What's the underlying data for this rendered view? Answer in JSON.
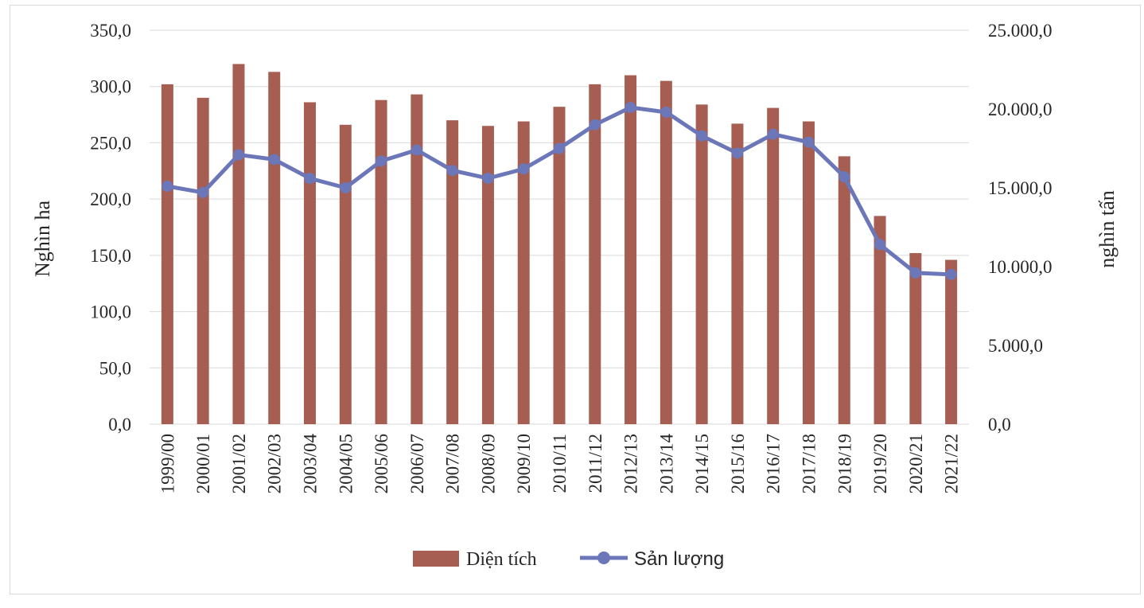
{
  "chart_data": {
    "type": "bar",
    "categories": [
      "1999/00",
      "2000/01",
      "2001/02",
      "2002/03",
      "2003/04",
      "2004/05",
      "2005/06",
      "2006/07",
      "2007/08",
      "2008/09",
      "2009/10",
      "2010/11",
      "2011/12",
      "2012/13",
      "2013/14",
      "2014/15",
      "2015/16",
      "2016/17",
      "2017/18",
      "2018/19",
      "2019/20",
      "2020/21",
      "2021/22"
    ],
    "series": [
      {
        "name": "Diện tích",
        "type": "bar",
        "axis": "left",
        "color": "#a65e52",
        "values": [
          302,
          290,
          320,
          313,
          286,
          266,
          288,
          293,
          270,
          265,
          269,
          282,
          302,
          310,
          305,
          284,
          267,
          281,
          269,
          238,
          185,
          152,
          146
        ]
      },
      {
        "name": "Sản lượng",
        "type": "line",
        "axis": "right",
        "color": "#6b77b8",
        "values": [
          15100,
          14700,
          17100,
          16800,
          15600,
          15000,
          16700,
          17400,
          16100,
          15600,
          16200,
          17500,
          19000,
          20100,
          19800,
          18300,
          17200,
          18400,
          17900,
          15700,
          11400,
          9600,
          9500
        ]
      }
    ],
    "ylabel": "Nghìn ha",
    "y2label": "nghìn tấn",
    "ylim": [
      0,
      350
    ],
    "y2lim": [
      0,
      25000
    ],
    "yticks": [
      "0,0",
      "50,0",
      "100,0",
      "150,0",
      "200,0",
      "250,0",
      "300,0",
      "350,0"
    ],
    "y2ticks": [
      "0,0",
      "5.000,0",
      "10.000,0",
      "15.000,0",
      "20.000,0",
      "25.000,0"
    ],
    "grid": true,
    "legend": "bottom"
  }
}
